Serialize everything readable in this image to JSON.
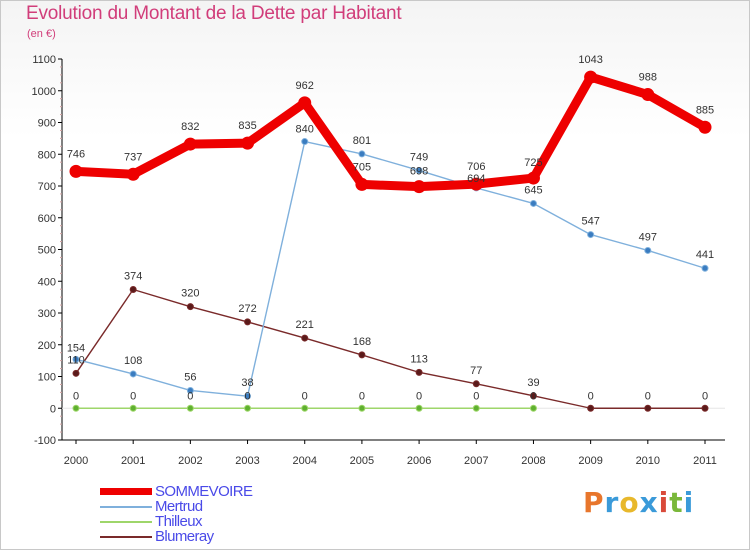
{
  "header": {
    "title": "Evolution du Montant de la Dette par Habitant",
    "subtitle": "(en €)"
  },
  "logo": {
    "letters": [
      "P",
      "r",
      "o",
      "x",
      "i",
      "t",
      "i"
    ],
    "colors": [
      "#e8762c",
      "#3a9ad9",
      "#e8b82c",
      "#3a9ad9",
      "#d94a3a",
      "#7ab83a",
      "#3a9ad9"
    ]
  },
  "chart_data": {
    "type": "line",
    "title": "Evolution du Montant de la Dette par Habitant",
    "subtitle": "(en €)",
    "x": [
      "2000",
      "2001",
      "2002",
      "2003",
      "2004",
      "2005",
      "2006",
      "2007",
      "2008",
      "2009",
      "2010",
      "2011"
    ],
    "yticks": [
      "-100",
      "0",
      "100",
      "200",
      "300",
      "400",
      "500",
      "600",
      "700",
      "800",
      "900",
      "1000",
      "1100"
    ],
    "ylim": [
      -100,
      1100
    ],
    "grid": false,
    "legend_position": "bottom-left",
    "series": [
      {
        "name": "SOMMEVOIRE",
        "color": "#ee0000",
        "values": [
          746,
          737,
          832,
          835,
          962,
          705,
          698,
          706,
          725,
          1043,
          988,
          885
        ],
        "labels": [
          "746",
          "737",
          "832",
          "835",
          "962",
          "705",
          "698",
          "706",
          "725",
          "1043",
          "988",
          "885"
        ]
      },
      {
        "name": "Mertrud",
        "color": "#7fb0dc",
        "marker_color": "#3a7cc0",
        "values": [
          154,
          108,
          56,
          38,
          840,
          801,
          749,
          694,
          645,
          547,
          497,
          441
        ],
        "labels": [
          "154",
          "108",
          "56",
          "38",
          "840",
          "801",
          "749",
          "694",
          "645",
          "547",
          "497",
          "441"
        ]
      },
      {
        "name": "Thilleux",
        "color": "#9ed66a",
        "marker_color": "#5fb030",
        "values": [
          0,
          0,
          0,
          0,
          0,
          0,
          0,
          0,
          0,
          null,
          null,
          null
        ],
        "labels": [
          "0",
          "0",
          "0",
          "0",
          "0",
          "0",
          "0",
          "0",
          "0",
          "",
          "",
          ""
        ]
      },
      {
        "name": "Blumeray",
        "color": "#7a2a2a",
        "marker_color": "#5a1a1a",
        "values": [
          110,
          374,
          320,
          272,
          221,
          168,
          113,
          77,
          39,
          0,
          0,
          0
        ],
        "labels": [
          "110",
          "374",
          "320",
          "272",
          "221",
          "168",
          "113",
          "77",
          "39",
          "0",
          "0",
          "0"
        ]
      }
    ]
  }
}
